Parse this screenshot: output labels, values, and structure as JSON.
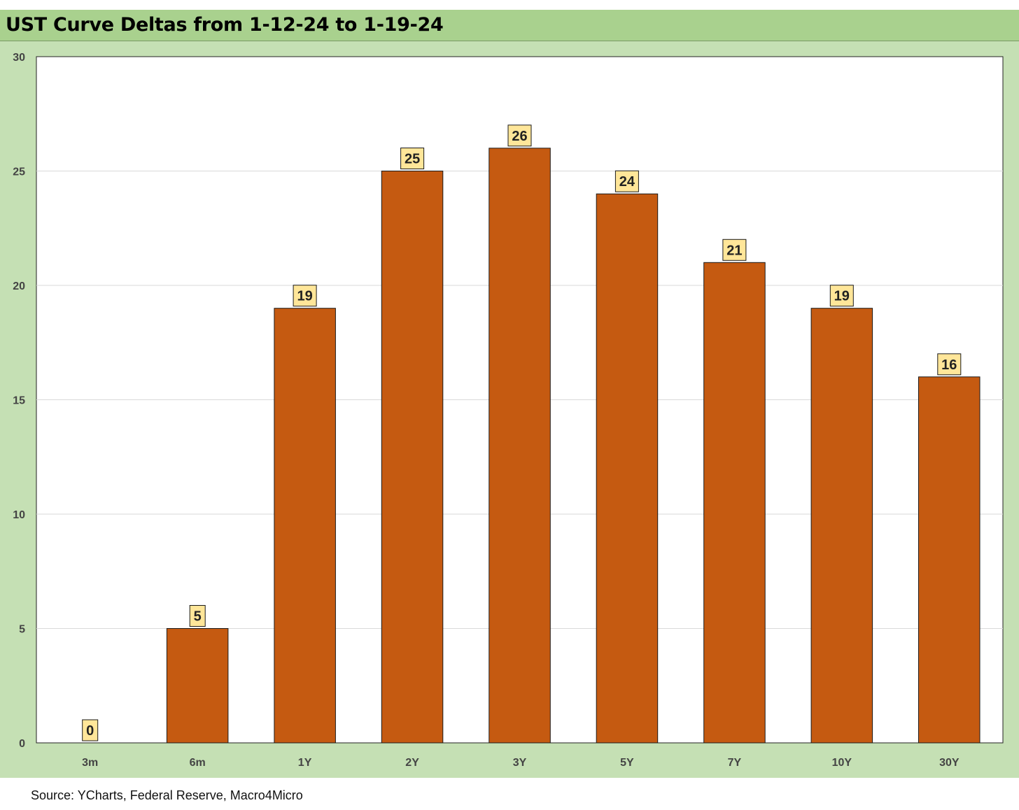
{
  "chart_data": {
    "type": "bar",
    "title": "UST Curve Deltas from 1-12-24 to 1-19-24",
    "categories": [
      "3m",
      "6m",
      "1Y",
      "2Y",
      "3Y",
      "5Y",
      "7Y",
      "10Y",
      "30Y"
    ],
    "values": [
      0,
      5,
      19,
      25,
      26,
      24,
      21,
      19,
      16
    ],
    "ylim": [
      0,
      30
    ],
    "yticks": [
      0,
      5,
      10,
      15,
      20,
      25,
      30
    ],
    "xlabel": "",
    "ylabel": "",
    "grid": true,
    "legend": "none",
    "data_labels": true
  },
  "colors": {
    "bar_fill": "#c55a11",
    "bar_stroke": "#1a1a1a",
    "label_fill": "#ffe699",
    "title_bar": "#a9d18e",
    "chart_background": "#c5e0b4",
    "plot_background": "#ffffff",
    "gridline": "#d9d9d9"
  },
  "footer": {
    "source": "Source: YCharts, Federal Reserve, Macro4Micro"
  }
}
